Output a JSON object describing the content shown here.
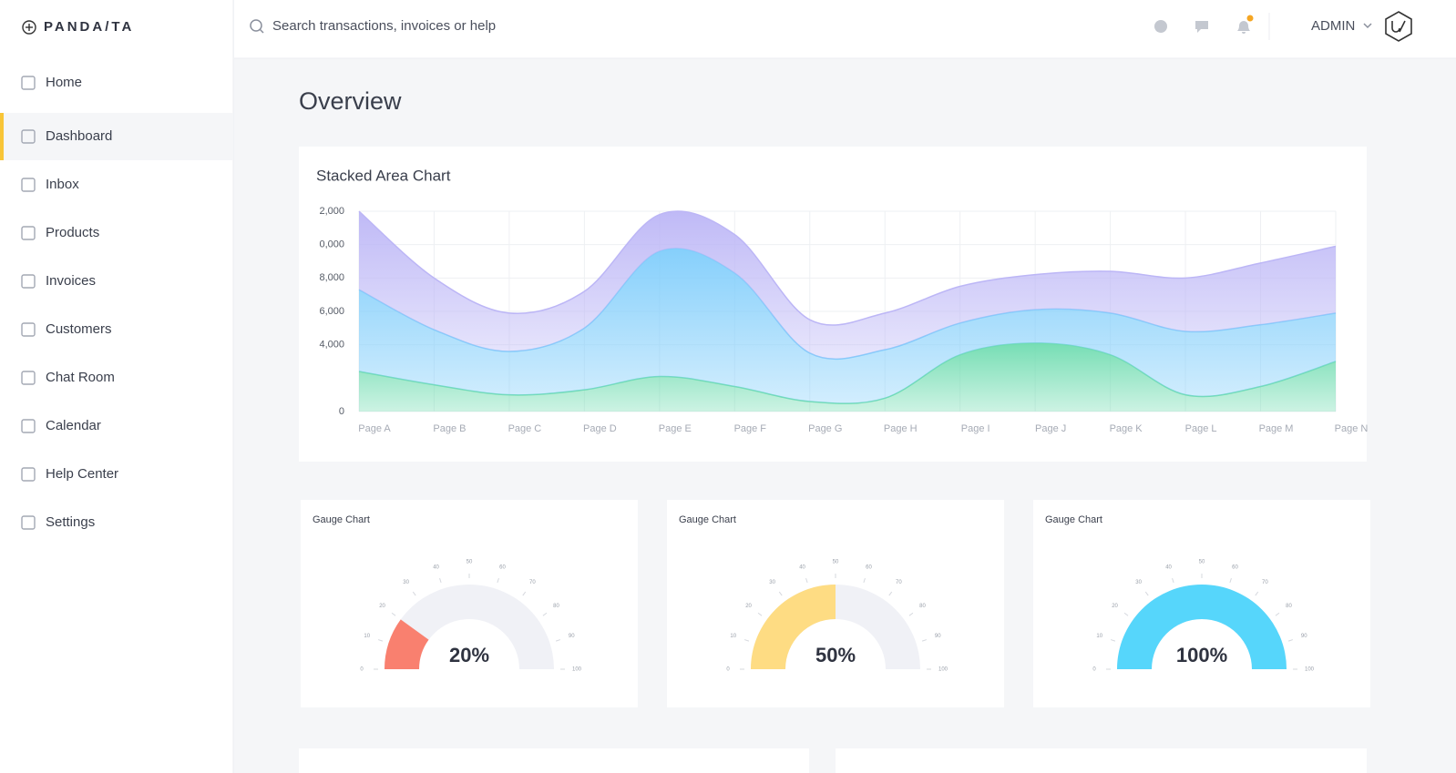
{
  "brand": "PANDA/TA",
  "search_placeholder": "Search transactions, invoices or help",
  "user": "ADMIN",
  "nav": [
    {
      "label": "Home"
    },
    {
      "label": "Dashboard",
      "active": true
    },
    {
      "label": "Inbox"
    },
    {
      "label": "Products"
    },
    {
      "label": "Invoices"
    },
    {
      "label": "Customers"
    },
    {
      "label": "Chat Room"
    },
    {
      "label": "Calendar"
    },
    {
      "label": "Help Center"
    },
    {
      "label": "Settings"
    }
  ],
  "page_title": "Overview",
  "chart_data": [
    {
      "type": "area",
      "stacked": true,
      "title": "Stacked Area Chart",
      "categories": [
        "Page A",
        "Page B",
        "Page C",
        "Page D",
        "Page E",
        "Page F",
        "Page G",
        "Page H",
        "Page I",
        "Page J",
        "Page K",
        "Page L",
        "Page M",
        "Page N"
      ],
      "series": [
        {
          "color": "#6fdcb0",
          "values": [
            2400,
            1600,
            1000,
            1300,
            2100,
            1500,
            600,
            800,
            3400,
            4100,
            3400,
            1000,
            1500,
            3000
          ]
        },
        {
          "color": "#7fcdfb",
          "values": [
            4900,
            3300,
            2600,
            3700,
            7500,
            6800,
            2900,
            2900,
            1900,
            2000,
            2500,
            3800,
            3700,
            2900
          ]
        },
        {
          "color": "#bcb6f6",
          "values": [
            4700,
            3100,
            2300,
            2200,
            2200,
            2300,
            2000,
            2200,
            2200,
            2100,
            2500,
            3200,
            3700,
            4000
          ]
        }
      ],
      "ylim": [
        0,
        12000
      ],
      "yticks": [
        0,
        {
          "value": 4000,
          "label": "4,000"
        },
        {
          "value": 6000,
          "label": "6,000"
        },
        {
          "value": 8000,
          "label": "8,000"
        },
        {
          "value": 10000,
          "label": "0,000"
        },
        {
          "value": 12000,
          "label": "2,000"
        }
      ],
      "grid": true
    },
    {
      "type": "gauge",
      "title": "Gauge Chart",
      "value": 20,
      "value_label": "20%",
      "color": "#f9806f",
      "range": [
        0,
        100
      ],
      "ticks": [
        0,
        10,
        20,
        30,
        40,
        50,
        60,
        70,
        80,
        90,
        100
      ]
    },
    {
      "type": "gauge",
      "title": "Gauge Chart",
      "value": 50,
      "value_label": "50%",
      "color": "#fedc83",
      "range": [
        0,
        100
      ],
      "ticks": [
        0,
        10,
        20,
        30,
        40,
        50,
        60,
        70,
        80,
        90,
        100
      ]
    },
    {
      "type": "gauge",
      "title": "Gauge Chart",
      "value": 100,
      "value_label": "100%",
      "color": "#56d6fb",
      "range": [
        0,
        100
      ],
      "ticks": [
        0,
        10,
        20,
        30,
        40,
        50,
        60,
        70,
        80,
        90,
        100
      ]
    }
  ]
}
